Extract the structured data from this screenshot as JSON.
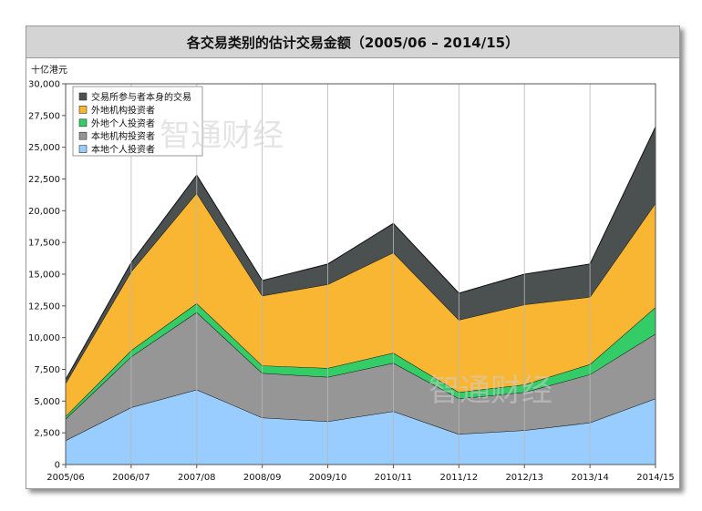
{
  "chart_data": {
    "type": "area",
    "stacked": true,
    "title": "各交易类别的估计交易金额（2005/06 – 2014/15）",
    "ylabel": "十亿港元",
    "xlabel": "",
    "categories": [
      "2005/06",
      "2006/07",
      "2007/08",
      "2008/09",
      "2009/10",
      "2010/11",
      "2011/12",
      "2012/13",
      "2013/14",
      "2014/15"
    ],
    "ylim": [
      0,
      30000
    ],
    "yticks": [
      "0",
      "2,500",
      "5,000",
      "7,500",
      "10,000",
      "12,500",
      "15,000",
      "17,500",
      "20,000",
      "22,500",
      "25,000",
      "27,500",
      "30,000"
    ],
    "series": [
      {
        "name": "本地个人投资者",
        "color": "#99ccff",
        "values": [
          1900,
          4500,
          5900,
          3700,
          3400,
          4200,
          2400,
          2700,
          3300,
          5200
        ]
      },
      {
        "name": "本地机构投资者",
        "color": "#969696",
        "values": [
          1700,
          4000,
          6100,
          3500,
          3500,
          3800,
          2800,
          3000,
          3800,
          5100
        ]
      },
      {
        "name": "外地个人投资者",
        "color": "#33cc66",
        "values": [
          200,
          500,
          700,
          600,
          700,
          800,
          500,
          600,
          800,
          2100
        ]
      },
      {
        "name": "外地机构投资者",
        "color": "#f9b633",
        "values": [
          2600,
          6200,
          8700,
          5500,
          6600,
          7900,
          5700,
          6300,
          5300,
          8200
        ]
      },
      {
        "name": "交易所参与者本身的交易",
        "color": "#4b5150",
        "values": [
          300,
          700,
          1400,
          1200,
          1600,
          2300,
          2100,
          2400,
          2600,
          6000
        ]
      }
    ],
    "legend": {
      "position": "top-left",
      "order": [
        "交易所参与者本身的交易",
        "外地机构投资者",
        "外地个人投资者",
        "本地机构投资者",
        "本地个人投资者"
      ]
    },
    "grid": {
      "vertical": true,
      "horizontal": false
    }
  },
  "watermark": {
    "text": "智通财经"
  }
}
